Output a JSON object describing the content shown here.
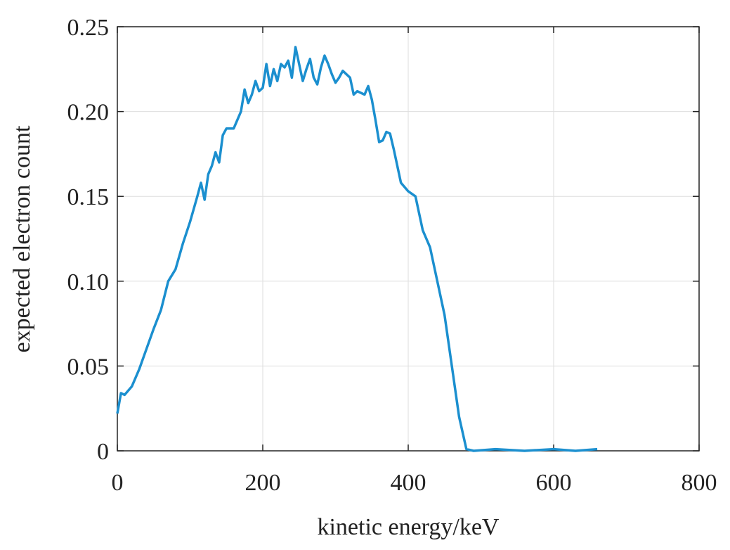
{
  "chart_data": {
    "type": "line",
    "xlabel": "kinetic energy/keV",
    "ylabel": "expected electron count",
    "x": [
      0,
      5,
      10,
      20,
      30,
      40,
      50,
      60,
      70,
      80,
      90,
      100,
      110,
      115,
      120,
      125,
      130,
      135,
      140,
      145,
      150,
      160,
      170,
      175,
      180,
      185,
      190,
      195,
      200,
      205,
      210,
      215,
      220,
      225,
      230,
      235,
      240,
      245,
      250,
      255,
      260,
      265,
      270,
      275,
      280,
      285,
      290,
      295,
      300,
      305,
      310,
      320,
      325,
      330,
      340,
      345,
      350,
      355,
      360,
      365,
      370,
      375,
      380,
      385,
      390,
      400,
      410,
      420,
      430,
      440,
      450,
      460,
      470,
      480,
      490,
      520,
      560,
      600,
      630,
      660
    ],
    "series": [
      {
        "name": "expected electron count",
        "color": "#1b8fcf",
        "values": [
          0.022,
          0.034,
          0.033,
          0.038,
          0.048,
          0.06,
          0.072,
          0.083,
          0.1,
          0.107,
          0.122,
          0.135,
          0.15,
          0.158,
          0.148,
          0.163,
          0.168,
          0.176,
          0.17,
          0.186,
          0.19,
          0.19,
          0.2,
          0.213,
          0.205,
          0.21,
          0.218,
          0.212,
          0.214,
          0.228,
          0.215,
          0.225,
          0.218,
          0.228,
          0.226,
          0.23,
          0.22,
          0.238,
          0.228,
          0.218,
          0.225,
          0.231,
          0.22,
          0.216,
          0.226,
          0.233,
          0.228,
          0.222,
          0.217,
          0.22,
          0.224,
          0.22,
          0.21,
          0.212,
          0.21,
          0.215,
          0.207,
          0.195,
          0.182,
          0.183,
          0.188,
          0.187,
          0.178,
          0.168,
          0.158,
          0.153,
          0.15,
          0.13,
          0.12,
          0.1,
          0.08,
          0.05,
          0.02,
          0.001,
          0,
          0.001,
          0,
          0.001,
          0,
          0.001
        ]
      }
    ],
    "xlim": [
      0,
      800
    ],
    "xticks": [
      0,
      200,
      400,
      600,
      800
    ],
    "ylim": [
      0,
      0.25
    ],
    "yticks": [
      0,
      0.05,
      {
        "value": 0.1,
        "label": "0.10"
      },
      0.15,
      {
        "value": 0.2,
        "label": "0.20"
      },
      0.25
    ],
    "grid": true
  }
}
